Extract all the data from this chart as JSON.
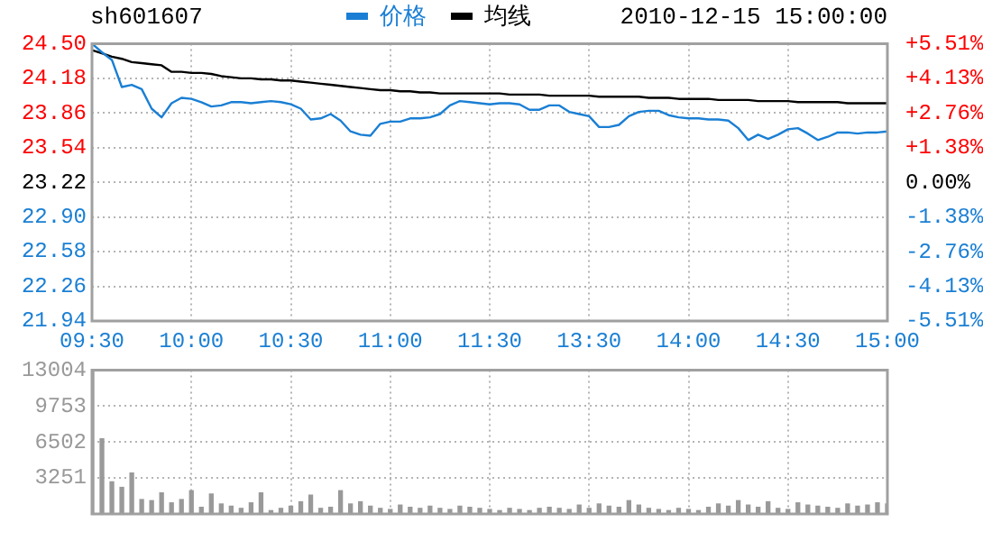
{
  "chart_data": [
    {
      "type": "line",
      "title": "sh601607",
      "subtitle": "2010-12-15 15:00:00",
      "legend": "top",
      "grid": true,
      "categories": [
        "09:30",
        null,
        null,
        null,
        null,
        null,
        null,
        null,
        null,
        null,
        "10:00",
        null,
        null,
        null,
        null,
        null,
        null,
        null,
        null,
        null,
        "10:30",
        null,
        null,
        null,
        null,
        null,
        null,
        null,
        null,
        null,
        "11:00",
        null,
        null,
        null,
        null,
        null,
        null,
        null,
        null,
        null,
        "11:30",
        null,
        null,
        null,
        null,
        null,
        null,
        null,
        null,
        null,
        "13:30",
        null,
        null,
        null,
        null,
        null,
        null,
        null,
        null,
        null,
        "14:00",
        null,
        null,
        null,
        null,
        null,
        null,
        null,
        null,
        null,
        "14:30",
        null,
        null,
        null,
        null,
        null,
        null,
        null,
        null,
        null,
        "15:00"
      ],
      "ylim": [
        21.94,
        24.5
      ],
      "yticks": [
        21.94,
        22.26,
        22.58,
        {
          "value": 22.9,
          "label": "22.90"
        },
        23.22,
        23.54,
        23.86,
        24.18,
        {
          "value": 24.5,
          "label": "24.50"
        }
      ],
      "y2lim": [
        -5.51,
        5.51
      ],
      "y2ticks": [
        {
          "value": -5.51,
          "label": "-5.51%"
        },
        {
          "value": -4.13,
          "label": "-4.13%"
        },
        {
          "value": -2.76,
          "label": "-2.76%"
        },
        {
          "value": -1.38,
          "label": "-1.38%"
        },
        {
          "value": 0,
          "label": "0.00%"
        },
        {
          "value": 1.38,
          "label": "+1.38%"
        },
        {
          "value": 2.76,
          "label": "+2.76%"
        },
        {
          "value": 4.13,
          "label": "+4.13%"
        },
        {
          "value": 5.51,
          "label": "+5.51%"
        }
      ],
      "series": [
        {
          "name": "价格",
          "color": "#1a7fd4",
          "values": [
            24.5,
            24.42,
            24.35,
            24.1,
            24.12,
            24.08,
            23.9,
            23.82,
            23.95,
            24.0,
            23.99,
            23.96,
            23.92,
            23.93,
            23.96,
            23.96,
            23.95,
            23.96,
            23.97,
            23.96,
            23.94,
            23.9,
            23.8,
            23.81,
            23.85,
            23.79,
            23.69,
            23.66,
            23.65,
            23.76,
            23.78,
            23.78,
            23.81,
            23.81,
            23.82,
            23.85,
            23.93,
            23.97,
            23.96,
            23.95,
            23.94,
            23.95,
            23.95,
            23.94,
            23.89,
            23.89,
            23.93,
            23.93,
            23.87,
            23.85,
            23.83,
            23.73,
            23.73,
            23.75,
            23.83,
            23.87,
            23.88,
            23.88,
            23.84,
            23.82,
            23.81,
            23.81,
            23.8,
            23.8,
            23.79,
            23.72,
            23.61,
            23.66,
            23.62,
            23.66,
            23.71,
            23.72,
            23.67,
            23.61,
            23.64,
            23.68,
            23.68,
            23.67,
            23.68,
            23.68,
            23.69
          ]
        },
        {
          "name": "均线",
          "color": "#000000",
          "values": [
            24.44,
            24.41,
            24.38,
            24.36,
            24.33,
            24.32,
            24.31,
            24.3,
            24.24,
            24.24,
            24.23,
            24.23,
            24.22,
            24.2,
            24.19,
            24.18,
            24.18,
            24.17,
            24.17,
            24.16,
            24.16,
            24.15,
            24.14,
            24.13,
            24.12,
            24.11,
            24.1,
            24.09,
            24.08,
            24.07,
            24.07,
            24.06,
            24.06,
            24.05,
            24.05,
            24.04,
            24.04,
            24.04,
            24.04,
            24.04,
            24.04,
            24.04,
            24.03,
            24.03,
            24.03,
            24.03,
            24.02,
            24.02,
            24.02,
            24.02,
            24.02,
            24.01,
            24.01,
            24.01,
            24.01,
            24.01,
            24.0,
            24.0,
            24.0,
            23.99,
            23.99,
            23.99,
            23.99,
            23.98,
            23.98,
            23.98,
            23.98,
            23.97,
            23.97,
            23.97,
            23.97,
            23.96,
            23.96,
            23.96,
            23.96,
            23.96,
            23.95,
            23.95,
            23.95,
            23.95,
            23.95
          ]
        }
      ]
    },
    {
      "type": "bar",
      "color": "#999999",
      "grid": true,
      "tick_labels": "y",
      "categories": [
        null,
        null,
        null,
        null,
        null,
        null,
        null,
        null,
        null,
        null,
        null,
        null,
        null,
        null,
        null,
        null,
        null,
        null,
        null,
        null,
        null,
        null,
        null,
        null,
        null,
        null,
        null,
        null,
        null,
        null,
        null,
        null,
        null,
        null,
        null,
        null,
        null,
        null,
        null,
        null,
        null,
        null,
        null,
        null,
        null,
        null,
        null,
        null,
        null,
        null,
        null,
        null,
        null,
        null,
        null,
        null,
        null,
        null,
        null,
        null,
        null,
        null,
        null,
        null,
        null,
        null,
        null,
        null,
        null,
        null,
        null,
        null,
        null,
        null,
        null,
        null,
        null,
        null,
        null,
        null,
        null
      ],
      "ylim": [
        0,
        13004
      ],
      "yticks": [
        {
          "value": 0,
          "label": null
        },
        3251,
        6502,
        9753,
        13004
      ],
      "values": [
        13000,
        6800,
        2900,
        2400,
        3700,
        1300,
        1200,
        1900,
        1000,
        1300,
        2100,
        600,
        1800,
        900,
        700,
        500,
        1000,
        1900,
        300,
        500,
        700,
        1100,
        1700,
        500,
        600,
        2100,
        900,
        1100,
        700,
        500,
        400,
        800,
        600,
        500,
        700,
        500,
        400,
        700,
        600,
        500,
        400,
        300,
        500,
        400,
        300,
        500,
        600,
        500,
        400,
        800,
        500,
        900,
        700,
        600,
        1200,
        800,
        500,
        400,
        300,
        500,
        400,
        300,
        600,
        900,
        700,
        1200,
        800,
        600,
        1100,
        500,
        400,
        1000,
        800,
        700,
        600,
        500,
        900,
        700,
        800,
        1000,
        900
      ]
    }
  ]
}
